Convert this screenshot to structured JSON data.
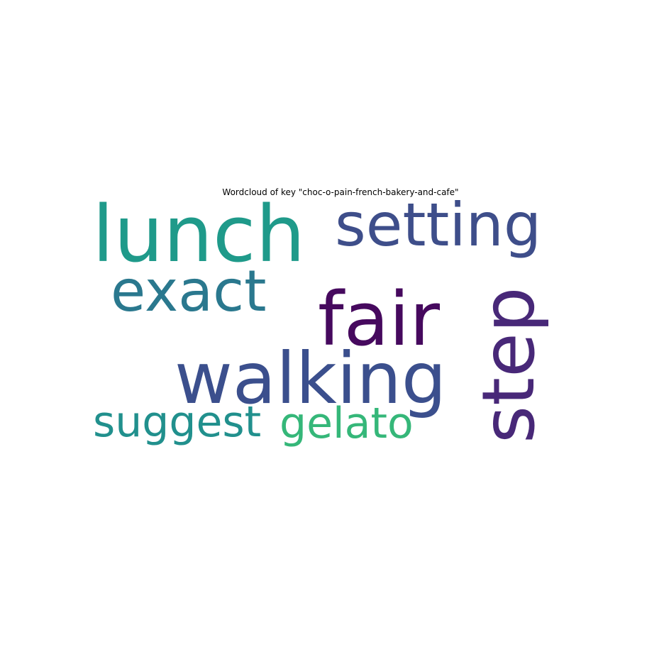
{
  "chart_data": {
    "type": "wordcloud",
    "title": "Wordcloud of key \"choc-o-pain-french-bakery-and-cafe\"",
    "words": [
      {
        "text": "lunch",
        "color": "#1f9a8a"
      },
      {
        "text": "setting",
        "color": "#3e4e8a"
      },
      {
        "text": "exact",
        "color": "#2a788e"
      },
      {
        "text": "fair",
        "color": "#46095e"
      },
      {
        "text": "step",
        "color": "#482878"
      },
      {
        "text": "walking",
        "color": "#3b4f8d"
      },
      {
        "text": "suggest",
        "color": "#21908d"
      },
      {
        "text": "gelato",
        "color": "#35b779"
      }
    ]
  }
}
